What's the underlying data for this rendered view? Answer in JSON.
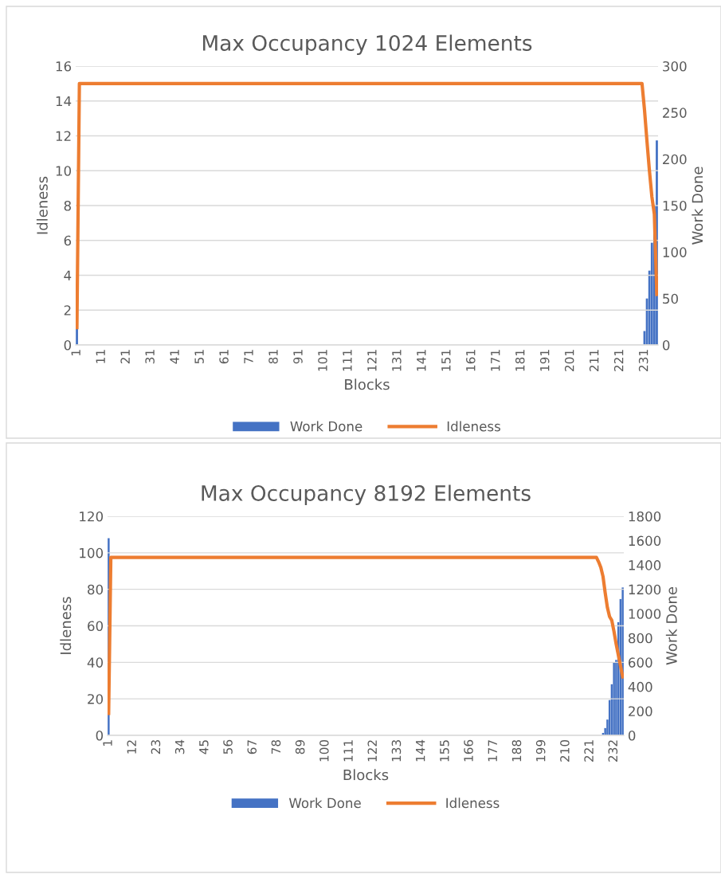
{
  "chart_data": [
    {
      "type": "bar",
      "title": "Max Occupancy 1024 Elements",
      "xlabel": "Blocks",
      "ylabel": "Idleness",
      "y2label": "Work Done",
      "categories": [
        "1",
        null,
        null,
        null,
        null,
        null,
        null,
        null,
        null,
        null,
        "11",
        null,
        null,
        null,
        null,
        null,
        null,
        null,
        null,
        null,
        "21",
        null,
        null,
        null,
        null,
        null,
        null,
        null,
        null,
        null,
        "31",
        null,
        null,
        null,
        null,
        null,
        null,
        null,
        null,
        null,
        "41",
        null,
        null,
        null,
        null,
        null,
        null,
        null,
        null,
        null,
        "51",
        null,
        null,
        null,
        null,
        null,
        null,
        null,
        null,
        null,
        "61",
        null,
        null,
        null,
        null,
        null,
        null,
        null,
        null,
        null,
        "71",
        null,
        null,
        null,
        null,
        null,
        null,
        null,
        null,
        null,
        "81",
        null,
        null,
        null,
        null,
        null,
        null,
        null,
        null,
        null,
        "91",
        null,
        null,
        null,
        null,
        null,
        null,
        null,
        null,
        null,
        "101",
        null,
        null,
        null,
        null,
        null,
        null,
        null,
        null,
        null,
        "111",
        null,
        null,
        null,
        null,
        null,
        null,
        null,
        null,
        null,
        "121",
        null,
        null,
        null,
        null,
        null,
        null,
        null,
        null,
        null,
        "131",
        null,
        null,
        null,
        null,
        null,
        null,
        null,
        null,
        null,
        "141",
        null,
        null,
        null,
        null,
        null,
        null,
        null,
        null,
        null,
        "151",
        null,
        null,
        null,
        null,
        null,
        null,
        null,
        null,
        null,
        "161",
        null,
        null,
        null,
        null,
        null,
        null,
        null,
        null,
        null,
        "171",
        null,
        null,
        null,
        null,
        null,
        null,
        null,
        null,
        null,
        "181",
        null,
        null,
        null,
        null,
        null,
        null,
        null,
        null,
        null,
        "191",
        null,
        null,
        null,
        null,
        null,
        null,
        null,
        null,
        null,
        "201",
        null,
        null,
        null,
        null,
        null,
        null,
        null,
        null,
        null,
        "211",
        null,
        null,
        null,
        null,
        null,
        null,
        null,
        null,
        null,
        "221",
        null,
        null,
        null,
        null,
        null,
        null,
        null,
        null,
        null,
        "231",
        null,
        null,
        null,
        null,
        null
      ],
      "series": [
        {
          "name": "Work Done",
          "axis": "y2",
          "color": "#4472c4",
          "values": [
            18,
            0,
            0,
            0,
            0,
            0,
            0,
            0,
            0,
            0,
            0,
            0,
            0,
            0,
            0,
            0,
            0,
            0,
            0,
            0,
            0,
            0,
            0,
            0,
            0,
            0,
            0,
            0,
            0,
            0,
            0,
            0,
            0,
            0,
            0,
            0,
            0,
            0,
            0,
            0,
            0,
            0,
            0,
            0,
            0,
            0,
            0,
            0,
            0,
            0,
            0,
            0,
            0,
            0,
            0,
            0,
            0,
            0,
            0,
            0,
            0,
            0,
            0,
            0,
            0,
            0,
            0,
            0,
            0,
            0,
            0,
            0,
            0,
            0,
            0,
            0,
            0,
            0,
            0,
            0,
            0,
            0,
            0,
            0,
            0,
            0,
            0,
            0,
            0,
            0,
            0,
            0,
            0,
            0,
            0,
            0,
            0,
            0,
            0,
            0,
            0,
            0,
            0,
            0,
            0,
            0,
            0,
            0,
            0,
            0,
            0,
            0,
            0,
            0,
            0,
            0,
            0,
            0,
            0,
            0,
            0,
            0,
            0,
            0,
            0,
            0,
            0,
            0,
            0,
            0,
            0,
            0,
            0,
            0,
            0,
            0,
            0,
            0,
            0,
            0,
            0,
            0,
            0,
            0,
            0,
            0,
            0,
            0,
            0,
            0,
            0,
            0,
            0,
            0,
            0,
            0,
            0,
            0,
            0,
            0,
            0,
            0,
            0,
            0,
            0,
            0,
            0,
            0,
            0,
            0,
            0,
            0,
            0,
            0,
            0,
            0,
            0,
            0,
            0,
            0,
            0,
            0,
            0,
            0,
            0,
            0,
            0,
            0,
            0,
            0,
            0,
            0,
            0,
            0,
            0,
            0,
            0,
            0,
            0,
            0,
            0,
            0,
            0,
            0,
            0,
            0,
            0,
            0,
            0,
            0,
            0,
            0,
            0,
            0,
            0,
            0,
            0,
            0,
            0,
            0,
            0,
            0,
            0,
            0,
            0,
            0,
            0,
            0,
            0,
            0,
            15,
            50,
            80,
            110,
            150,
            220
          ]
        },
        {
          "name": "Idleness",
          "type": "line",
          "axis": "y",
          "color": "#ed7d31",
          "values": [
            1,
            15,
            15,
            15,
            15,
            15,
            15,
            15,
            15,
            15,
            15,
            15,
            15,
            15,
            15,
            15,
            15,
            15,
            15,
            15,
            15,
            15,
            15,
            15,
            15,
            15,
            15,
            15,
            15,
            15,
            15,
            15,
            15,
            15,
            15,
            15,
            15,
            15,
            15,
            15,
            15,
            15,
            15,
            15,
            15,
            15,
            15,
            15,
            15,
            15,
            15,
            15,
            15,
            15,
            15,
            15,
            15,
            15,
            15,
            15,
            15,
            15,
            15,
            15,
            15,
            15,
            15,
            15,
            15,
            15,
            15,
            15,
            15,
            15,
            15,
            15,
            15,
            15,
            15,
            15,
            15,
            15,
            15,
            15,
            15,
            15,
            15,
            15,
            15,
            15,
            15,
            15,
            15,
            15,
            15,
            15,
            15,
            15,
            15,
            15,
            15,
            15,
            15,
            15,
            15,
            15,
            15,
            15,
            15,
            15,
            15,
            15,
            15,
            15,
            15,
            15,
            15,
            15,
            15,
            15,
            15,
            15,
            15,
            15,
            15,
            15,
            15,
            15,
            15,
            15,
            15,
            15,
            15,
            15,
            15,
            15,
            15,
            15,
            15,
            15,
            15,
            15,
            15,
            15,
            15,
            15,
            15,
            15,
            15,
            15,
            15,
            15,
            15,
            15,
            15,
            15,
            15,
            15,
            15,
            15,
            15,
            15,
            15,
            15,
            15,
            15,
            15,
            15,
            15,
            15,
            15,
            15,
            15,
            15,
            15,
            15,
            15,
            15,
            15,
            15,
            15,
            15,
            15,
            15,
            15,
            15,
            15,
            15,
            15,
            15,
            15,
            15,
            15,
            15,
            15,
            15,
            15,
            15,
            15,
            15,
            15,
            15,
            15,
            15,
            15,
            15,
            15,
            15,
            15,
            15,
            15,
            15,
            15,
            15,
            15,
            15,
            15,
            15,
            15,
            15,
            15,
            15,
            15,
            15,
            15,
            15,
            15,
            15,
            15,
            15,
            13.5,
            11.7,
            10,
            8.5,
            7.5,
            2.9
          ]
        }
      ],
      "ylim": [
        0,
        16
      ],
      "yticks": [
        0,
        2,
        4,
        6,
        8,
        10,
        12,
        14,
        16
      ],
      "y2lim": [
        0,
        300
      ],
      "y2ticks": [
        0,
        50,
        100,
        150,
        200,
        250,
        300
      ],
      "grid": "y",
      "legend": "bottom",
      "marker": "none",
      "line_style": "solid"
    },
    {
      "type": "bar",
      "title": "Max Occupancy 8192 Elements",
      "xlabel": "Blocks",
      "ylabel": "Idleness",
      "y2label": "Work Done",
      "categories": [
        "1",
        null,
        null,
        null,
        null,
        null,
        null,
        null,
        null,
        null,
        null,
        "12",
        null,
        null,
        null,
        null,
        null,
        null,
        null,
        null,
        null,
        null,
        "23",
        null,
        null,
        null,
        null,
        null,
        null,
        null,
        null,
        null,
        null,
        "34",
        null,
        null,
        null,
        null,
        null,
        null,
        null,
        null,
        null,
        null,
        "45",
        null,
        null,
        null,
        null,
        null,
        null,
        null,
        null,
        null,
        null,
        "56",
        null,
        null,
        null,
        null,
        null,
        null,
        null,
        null,
        null,
        null,
        "67",
        null,
        null,
        null,
        null,
        null,
        null,
        null,
        null,
        null,
        null,
        "78",
        null,
        null,
        null,
        null,
        null,
        null,
        null,
        null,
        null,
        null,
        "89",
        null,
        null,
        null,
        null,
        null,
        null,
        null,
        null,
        null,
        null,
        "100",
        null,
        null,
        null,
        null,
        null,
        null,
        null,
        null,
        null,
        null,
        "111",
        null,
        null,
        null,
        null,
        null,
        null,
        null,
        null,
        null,
        null,
        "122",
        null,
        null,
        null,
        null,
        null,
        null,
        null,
        null,
        null,
        null,
        "133",
        null,
        null,
        null,
        null,
        null,
        null,
        null,
        null,
        null,
        null,
        "144",
        null,
        null,
        null,
        null,
        null,
        null,
        null,
        null,
        null,
        null,
        "155",
        null,
        null,
        null,
        null,
        null,
        null,
        null,
        null,
        null,
        null,
        "166",
        null,
        null,
        null,
        null,
        null,
        null,
        null,
        null,
        null,
        null,
        "177",
        null,
        null,
        null,
        null,
        null,
        null,
        null,
        null,
        null,
        null,
        "188",
        null,
        null,
        null,
        null,
        null,
        null,
        null,
        null,
        null,
        null,
        "199",
        null,
        null,
        null,
        null,
        null,
        null,
        null,
        null,
        null,
        null,
        "210",
        null,
        null,
        null,
        null,
        null,
        null,
        null,
        null,
        null,
        null,
        "221",
        null,
        null,
        null,
        null,
        null,
        null,
        null,
        null,
        null,
        null,
        "232",
        null,
        null,
        null,
        null
      ],
      "series": [
        {
          "name": "Work Done",
          "axis": "y2",
          "color": "#4472c4",
          "values": [
            1620,
            0,
            0,
            0,
            0,
            0,
            0,
            0,
            0,
            0,
            0,
            0,
            0,
            0,
            0,
            0,
            0,
            0,
            0,
            0,
            0,
            0,
            0,
            0,
            0,
            0,
            0,
            0,
            0,
            0,
            0,
            0,
            0,
            0,
            0,
            0,
            0,
            0,
            0,
            0,
            0,
            0,
            0,
            0,
            0,
            0,
            0,
            0,
            0,
            0,
            0,
            0,
            0,
            0,
            0,
            0,
            0,
            0,
            0,
            0,
            0,
            0,
            0,
            0,
            0,
            0,
            0,
            0,
            0,
            0,
            0,
            0,
            0,
            0,
            0,
            0,
            0,
            0,
            0,
            0,
            0,
            0,
            0,
            0,
            0,
            0,
            0,
            0,
            0,
            0,
            0,
            0,
            0,
            0,
            0,
            0,
            0,
            0,
            0,
            0,
            0,
            0,
            0,
            0,
            0,
            0,
            0,
            0,
            0,
            0,
            0,
            0,
            0,
            0,
            0,
            0,
            0,
            0,
            0,
            0,
            0,
            0,
            0,
            0,
            0,
            0,
            0,
            0,
            0,
            0,
            0,
            0,
            0,
            0,
            0,
            0,
            0,
            0,
            0,
            0,
            0,
            0,
            0,
            0,
            0,
            0,
            0,
            0,
            0,
            0,
            0,
            0,
            0,
            0,
            0,
            0,
            0,
            0,
            0,
            0,
            0,
            0,
            0,
            0,
            0,
            0,
            0,
            0,
            0,
            0,
            0,
            0,
            0,
            0,
            0,
            0,
            0,
            0,
            0,
            0,
            0,
            0,
            0,
            0,
            0,
            0,
            0,
            0,
            0,
            0,
            0,
            0,
            0,
            0,
            0,
            0,
            0,
            0,
            0,
            0,
            0,
            0,
            0,
            0,
            0,
            0,
            0,
            0,
            0,
            0,
            0,
            0,
            0,
            0,
            0,
            0,
            0,
            0,
            0,
            0,
            0,
            0,
            0,
            0,
            0,
            0,
            20,
            60,
            130,
            290,
            420,
            600,
            620,
            930,
            1120,
            1215
          ]
        },
        {
          "name": "Idleness",
          "type": "line",
          "axis": "y",
          "color": "#ed7d31",
          "values": [
            12,
            97.5,
            97.5,
            97.5,
            97.5,
            97.5,
            97.5,
            97.5,
            97.5,
            97.5,
            97.5,
            97.5,
            97.5,
            97.5,
            97.5,
            97.5,
            97.5,
            97.5,
            97.5,
            97.5,
            97.5,
            97.5,
            97.5,
            97.5,
            97.5,
            97.5,
            97.5,
            97.5,
            97.5,
            97.5,
            97.5,
            97.5,
            97.5,
            97.5,
            97.5,
            97.5,
            97.5,
            97.5,
            97.5,
            97.5,
            97.5,
            97.5,
            97.5,
            97.5,
            97.5,
            97.5,
            97.5,
            97.5,
            97.5,
            97.5,
            97.5,
            97.5,
            97.5,
            97.5,
            97.5,
            97.5,
            97.5,
            97.5,
            97.5,
            97.5,
            97.5,
            97.5,
            97.5,
            97.5,
            97.5,
            97.5,
            97.5,
            97.5,
            97.5,
            97.5,
            97.5,
            97.5,
            97.5,
            97.5,
            97.5,
            97.5,
            97.5,
            97.5,
            97.5,
            97.5,
            97.5,
            97.5,
            97.5,
            97.5,
            97.5,
            97.5,
            97.5,
            97.5,
            97.5,
            97.5,
            97.5,
            97.5,
            97.5,
            97.5,
            97.5,
            97.5,
            97.5,
            97.5,
            97.5,
            97.5,
            97.5,
            97.5,
            97.5,
            97.5,
            97.5,
            97.5,
            97.5,
            97.5,
            97.5,
            97.5,
            97.5,
            97.5,
            97.5,
            97.5,
            97.5,
            97.5,
            97.5,
            97.5,
            97.5,
            97.5,
            97.5,
            97.5,
            97.5,
            97.5,
            97.5,
            97.5,
            97.5,
            97.5,
            97.5,
            97.5,
            97.5,
            97.5,
            97.5,
            97.5,
            97.5,
            97.5,
            97.5,
            97.5,
            97.5,
            97.5,
            97.5,
            97.5,
            97.5,
            97.5,
            97.5,
            97.5,
            97.5,
            97.5,
            97.5,
            97.5,
            97.5,
            97.5,
            97.5,
            97.5,
            97.5,
            97.5,
            97.5,
            97.5,
            97.5,
            97.5,
            97.5,
            97.5,
            97.5,
            97.5,
            97.5,
            97.5,
            97.5,
            97.5,
            97.5,
            97.5,
            97.5,
            97.5,
            97.5,
            97.5,
            97.5,
            97.5,
            97.5,
            97.5,
            97.5,
            97.5,
            97.5,
            97.5,
            97.5,
            97.5,
            97.5,
            97.5,
            97.5,
            97.5,
            97.5,
            97.5,
            97.5,
            97.5,
            97.5,
            97.5,
            97.5,
            97.5,
            97.5,
            97.5,
            97.5,
            97.5,
            97.5,
            97.5,
            97.5,
            97.5,
            97.5,
            97.5,
            97.5,
            97.5,
            97.5,
            97.5,
            97.5,
            97.5,
            97.5,
            97.5,
            97.5,
            97.5,
            97.5,
            97.5,
            97.5,
            97.5,
            97.5,
            97.5,
            97.5,
            97.5,
            95,
            92,
            87,
            78,
            70,
            65,
            63,
            57,
            50,
            44,
            38,
            32
          ]
        }
      ],
      "ylim": [
        0,
        120
      ],
      "yticks": [
        0,
        20,
        40,
        60,
        80,
        100,
        120
      ],
      "y2lim": [
        0,
        1800
      ],
      "y2ticks": [
        0,
        200,
        400,
        600,
        800,
        1000,
        1200,
        1400,
        1600,
        1800
      ],
      "grid": "y",
      "legend": "bottom",
      "marker": "none",
      "line_style": "solid"
    }
  ]
}
